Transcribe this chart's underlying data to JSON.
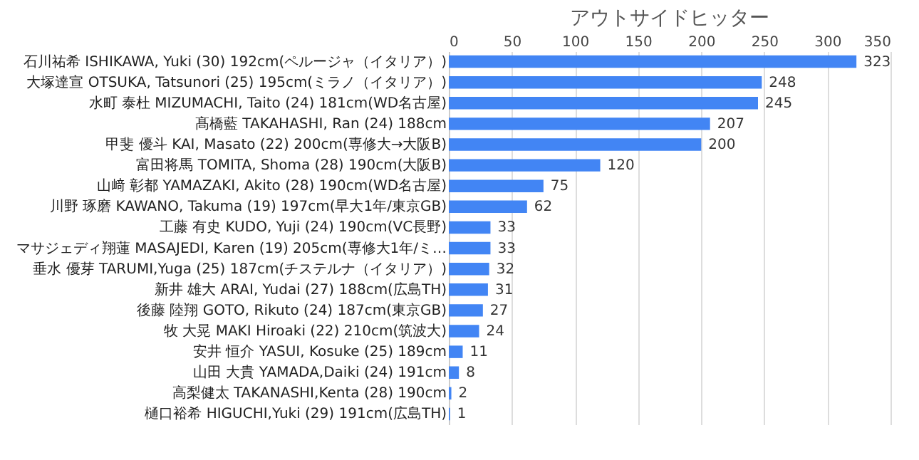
{
  "chart_data": {
    "type": "bar",
    "orientation": "horizontal",
    "title": "アウトサイドヒッター",
    "categories": [
      "石川祐希 ISHIKAWA, Yuki  (30) 192cm(ペルージャ（イタリア）)",
      "大塚達宣 OTSUKA, Tatsunori (25) 195cm(ミラノ（イタリア）)",
      "水町 泰杜 MIZUMACHI, Taito  (24) 181cm(WD名古屋)",
      "髙橋藍 TAKAHASHI, Ran  (24) 188cm",
      "甲斐 優斗 KAI, Masato  (22) 200cm(専修大→大阪B)",
      "富田将馬 TOMITA, Shoma  (28) 190cm(大阪B)",
      "山﨑 彰都 YAMAZAKI, Akito  (28) 190cm(WD名古屋)",
      "川野 琢磨 KAWANO, Takuma (19) 197cm(早大1年/東京GB)",
      "工藤 有史 KUDO, Yuji  (24) 190cm(VC長野)",
      "マサジェディ翔蓮 MASAJEDI, Karen   (19) 205cm(専修大1年/ミ…",
      "垂水 優芽 TARUMI,Yuga  (25) 187cm(チステルナ（イタリア）)",
      "新井 雄大 ARAI, Yudai  (27) 188cm(広島TH)",
      "後藤 陸翔 GOTO, Rikuto  (24) 187cm(東京GB)",
      "牧 大晃 MAKI Hiroaki  (22) 210cm(筑波大)",
      "安井 恒介 YASUI, Kosuke  (25) 189cm",
      "山田 大貴 YAMADA,Daiki   (24) 191cm",
      "高梨健太 TAKANASHI,Kenta   (28) 190cm",
      "樋口裕希 HIGUCHI,Yuki  (29) 191cm(広島TH)"
    ],
    "values": [
      323,
      248,
      245,
      207,
      200,
      120,
      75,
      62,
      33,
      33,
      32,
      31,
      27,
      24,
      11,
      8,
      2,
      1
    ],
    "color": "#4285f4",
    "xlim": [
      0,
      350
    ],
    "xticks": [
      0,
      50,
      100,
      150,
      200,
      250,
      300,
      350
    ],
    "grid": "x",
    "data_labels": true
  }
}
